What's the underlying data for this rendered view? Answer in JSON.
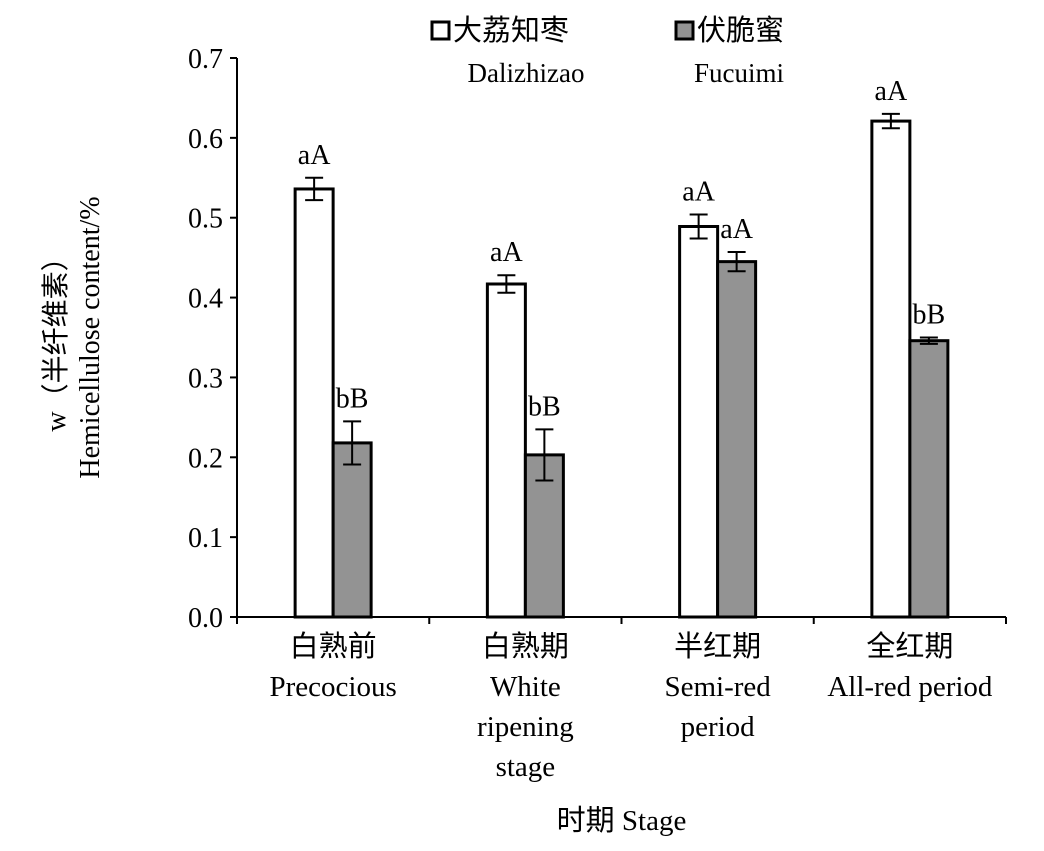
{
  "chart_data": {
    "type": "bar",
    "ylabel_lines": [
      "w（半纤维素）",
      "Hemicellulose content/%"
    ],
    "xlabel": "时期 Stage",
    "ylim": [
      0,
      0.7
    ],
    "yticks": [
      "0.0",
      "0.1",
      "0.2",
      "0.3",
      "0.4",
      "0.5",
      "0.6",
      "0.7"
    ],
    "categories": [
      [
        "白熟前",
        "Precocious"
      ],
      [
        "白熟期",
        "White",
        "ripening",
        "stage"
      ],
      [
        "半红期",
        "Semi-red",
        "period"
      ],
      [
        "全红期",
        "All-red period"
      ]
    ],
    "legend_position": "top",
    "series": [
      {
        "name_lines": [
          "大荔知枣",
          "Dalizhizao"
        ],
        "color": "#ffffff",
        "values": [
          0.536,
          0.417,
          0.489,
          0.621
        ],
        "errors": [
          0.014,
          0.011,
          0.015,
          0.009
        ],
        "labels": [
          "aA",
          "aA",
          "aA",
          "aA"
        ]
      },
      {
        "name_lines": [
          "伏脆蜜",
          "Fucuimi"
        ],
        "color": "#939393",
        "values": [
          0.218,
          0.203,
          0.445,
          0.346
        ],
        "errors": [
          0.027,
          0.032,
          0.012,
          0.004
        ],
        "labels": [
          "bB",
          "bB",
          "aA",
          "bB"
        ]
      }
    ]
  }
}
